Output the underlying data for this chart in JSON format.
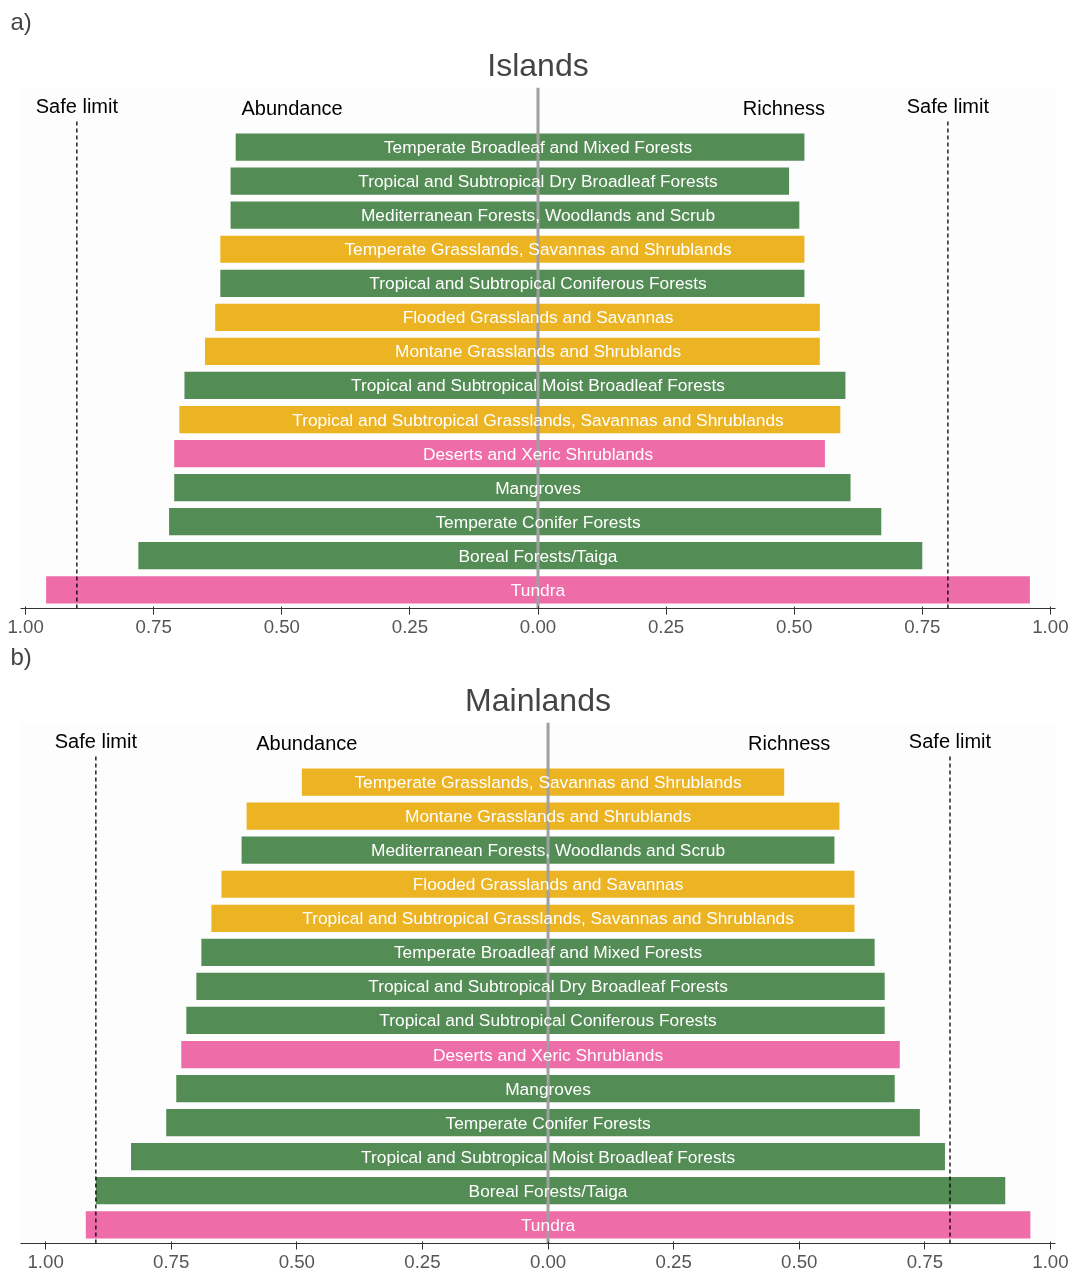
{
  "chart_data": [
    {
      "type": "bar",
      "orientation": "horizontal",
      "stacked": true,
      "title": "Islands",
      "annotations": [
        "a)"
      ],
      "tick_labels": "x",
      "grid": false,
      "legend": false,
      "categories": [
        "Temperate Broadleaf and Mixed Forests",
        "Tropical and Subtropical Dry Broadleaf Forests",
        "Mediterranean Forests, Woodlands and Scrub",
        "Temperate Grasslands, Savannas and Shrublands",
        "Tropical and Subtropical Coniferous Forests",
        "Flooded Grasslands and Savannas",
        "Montane Grasslands and Shrublands",
        "Tropical and Subtropical Moist Broadleaf Forests",
        "Tropical and Subtropical Grasslands, Savannas and Shrublands",
        "Deserts and Xeric Shrublands",
        "Mangroves",
        "Temperate Conifer Forests",
        "Boreal Forests/Taiga",
        "Tundra"
      ],
      "series": [
        {
          "name": "Abundance",
          "values": [
            -0.59,
            -0.6,
            -0.6,
            -0.62,
            -0.62,
            -0.63,
            -0.65,
            -0.69,
            -0.7,
            -0.71,
            -0.71,
            -0.72,
            -0.78,
            -0.96
          ],
          "colors": [
            "#548c55",
            "#548c55",
            "#548c55",
            "#ecb322",
            "#548c55",
            "#ecb322",
            "#ecb322",
            "#548c55",
            "#ecb322",
            "#ee6ca8",
            "#548c55",
            "#548c55",
            "#548c55",
            "#ee6ca8"
          ]
        },
        {
          "name": "Richness",
          "values": [
            0.52,
            0.49,
            0.51,
            0.52,
            0.52,
            0.55,
            0.55,
            0.6,
            0.59,
            0.56,
            0.61,
            0.67,
            0.75,
            0.96
          ],
          "colors": [
            "#548c55",
            "#548c55",
            "#548c55",
            "#ecb322",
            "#548c55",
            "#ecb322",
            "#ecb322",
            "#548c55",
            "#ecb322",
            "#ee6ca8",
            "#548c55",
            "#548c55",
            "#548c55",
            "#ee6ca8"
          ]
        }
      ],
      "xlim": [
        -1.01,
        1.01
      ],
      "xticks": [
        {
          "value": -1,
          "label": "1.00"
        },
        {
          "value": -0.75,
          "label": "0.75"
        },
        {
          "value": -0.5,
          "label": "0.50"
        },
        {
          "value": -0.25,
          "label": "0.25"
        },
        {
          "value": 0,
          "label": "0.00"
        },
        {
          "value": 0.25,
          "label": "0.25"
        },
        {
          "value": 0.5,
          "label": "0.50"
        },
        {
          "value": 0.75,
          "label": "0.75"
        },
        {
          "value": 1,
          "label": "1.00"
        }
      ],
      "ref_lines": [
        {
          "axis": "x",
          "value": -0.9,
          "label": "Safe limit",
          "color": "#000000",
          "line_style": "dashed"
        },
        {
          "axis": "x",
          "value": 0.8,
          "label": "Safe limit",
          "color": "#000000",
          "line_style": "dashed"
        },
        {
          "axis": "x",
          "value": 0,
          "color": "#a0a0a0",
          "line_style": "solid"
        }
      ]
    },
    {
      "type": "bar",
      "orientation": "horizontal",
      "stacked": true,
      "title": "Mainlands",
      "annotations": [
        "b)"
      ],
      "tick_labels": "x",
      "grid": false,
      "legend": false,
      "categories": [
        "Temperate Grasslands, Savannas and Shrublands",
        "Montane Grasslands and Shrublands",
        "Mediterranean Forests, Woodlands and Scrub",
        "Flooded Grasslands and Savannas",
        "Tropical and Subtropical Grasslands, Savannas and Shrublands",
        "Temperate Broadleaf and Mixed Forests",
        "Tropical and Subtropical Dry Broadleaf Forests",
        "Tropical and Subtropical Coniferous Forests",
        "Deserts and Xeric Shrublands",
        "Mangroves",
        "Temperate Conifer Forests",
        "Tropical and Subtropical Moist Broadleaf Forests",
        "Boreal Forests/Taiga",
        "Tundra"
      ],
      "series": [
        {
          "name": "Abundance",
          "values": [
            -0.49,
            -0.6,
            -0.61,
            -0.65,
            -0.67,
            -0.69,
            -0.7,
            -0.72,
            -0.73,
            -0.74,
            -0.76,
            -0.83,
            -0.9,
            -0.92
          ],
          "colors": [
            "#ecb322",
            "#ecb322",
            "#548c55",
            "#ecb322",
            "#ecb322",
            "#548c55",
            "#548c55",
            "#548c55",
            "#ee6ca8",
            "#548c55",
            "#548c55",
            "#548c55",
            "#548c55",
            "#ee6ca8"
          ]
        },
        {
          "name": "Richness",
          "values": [
            0.47,
            0.58,
            0.57,
            0.61,
            0.61,
            0.65,
            0.67,
            0.67,
            0.7,
            0.69,
            0.74,
            0.79,
            0.91,
            0.96
          ],
          "colors": [
            "#ecb322",
            "#ecb322",
            "#548c55",
            "#ecb322",
            "#ecb322",
            "#548c55",
            "#548c55",
            "#548c55",
            "#ee6ca8",
            "#548c55",
            "#548c55",
            "#548c55",
            "#548c55",
            "#ee6ca8"
          ]
        }
      ],
      "xlim": [
        -1.05,
        1.01
      ],
      "xticks": [
        {
          "value": -1,
          "label": "1.00"
        },
        {
          "value": -0.75,
          "label": "0.75"
        },
        {
          "value": -0.5,
          "label": "0.50"
        },
        {
          "value": -0.25,
          "label": "0.25"
        },
        {
          "value": 0,
          "label": "0.00"
        },
        {
          "value": 0.25,
          "label": "0.25"
        },
        {
          "value": 0.5,
          "label": "0.50"
        },
        {
          "value": 0.75,
          "label": "0.75"
        },
        {
          "value": 1,
          "label": "1.00"
        }
      ],
      "ref_lines": [
        {
          "axis": "x",
          "value": -0.9,
          "label": "Safe limit",
          "color": "#000000",
          "line_style": "dashed"
        },
        {
          "axis": "x",
          "value": 0.8,
          "label": "Safe limit",
          "color": "#000000",
          "line_style": "dashed"
        },
        {
          "axis": "x",
          "value": 0,
          "color": "#a0a0a0",
          "line_style": "solid"
        }
      ]
    }
  ]
}
